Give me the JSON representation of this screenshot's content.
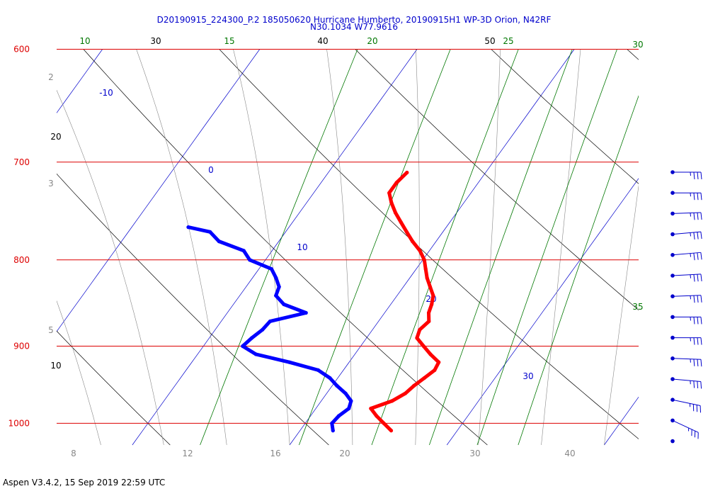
{
  "title_line1": "D20190915_224300_P.2 185050620 Hurricane Humberto, 20190915H1 WP-3D Orion, N42RF",
  "title_line2": "N30.1034 W77.9616",
  "footer": "Aspen V3.4.2, 15 Sep 2019  22:59 UTC",
  "colors": {
    "isobar": "#dd0000",
    "isotherm": "#0000cc",
    "mixing_ratio": "#007700",
    "dry_adiabat": "#000000",
    "moist_adiabat": "#888888",
    "temperature": "#ff0000",
    "dewpoint": "#0000ff",
    "wind_barb": "#0000cc"
  },
  "chart_data": {
    "type": "line",
    "chart_kind": "skew-T log-P sounding",
    "y_scale": "log",
    "ylim": [
      1030,
      600
    ],
    "pressure_levels": [
      "600",
      "700",
      "800",
      "900",
      "1000"
    ],
    "x_tick_labels": [
      "8",
      "12",
      "16",
      "20",
      "30",
      "40"
    ],
    "isotherm_labels": [
      "-10",
      "0",
      "10",
      "20",
      "30"
    ],
    "mixing_ratio_labels": [
      "10",
      "15",
      "20",
      "25",
      "30",
      "35"
    ],
    "dry_adiabat_labels": [
      "30",
      "40",
      "50",
      "20",
      "10"
    ],
    "left_side_labels": [
      "2",
      "3",
      "5"
    ],
    "series": [
      {
        "name": "",
        "kind": "temperature",
        "pressure": [
          1010,
          1000,
          990,
          980,
          970,
          960,
          950,
          940,
          930,
          920,
          910,
          900,
          890,
          880,
          870,
          860,
          850,
          840,
          830,
          820,
          810,
          800,
          790,
          780,
          770,
          760,
          750,
          740,
          730,
          720,
          710
        ],
        "temp_c": [
          25.8,
          25.0,
          24.2,
          23.5,
          24.5,
          25.0,
          25.2,
          25.5,
          25.8,
          25.7,
          24.8,
          24.0,
          23.2,
          23.0,
          23.2,
          22.8,
          22.6,
          22.3,
          21.7,
          21.1,
          20.6,
          20.1,
          19.4,
          18.5,
          17.7,
          16.9,
          16.1,
          15.4,
          14.8,
          14.8,
          15.0
        ]
      },
      {
        "name": "",
        "kind": "dewpoint",
        "pressure": [
          1010,
          1000,
          990,
          980,
          970,
          960,
          950,
          940,
          930,
          920,
          910,
          900,
          890,
          880,
          870,
          860,
          850,
          840,
          830,
          820,
          810,
          800,
          790,
          780,
          770,
          765
        ],
        "temp_c": [
          22.1,
          21.7,
          21.8,
          22.1,
          21.9,
          21.2,
          20.3,
          19.5,
          18.4,
          16.2,
          13.7,
          12.5,
          12.7,
          13.0,
          13.1,
          15.0,
          13.2,
          12.3,
          12.1,
          11.5,
          10.8,
          9.0,
          8.2,
          6.2,
          5.2,
          3.6
        ]
      }
    ],
    "wind_barbs": {
      "pressure": [
        715,
        740,
        765,
        790,
        815,
        840,
        865,
        890,
        915,
        940,
        965,
        990,
        1010,
        1020
      ],
      "speed_kt": [
        15,
        15,
        15,
        15,
        15,
        15,
        15,
        15,
        15,
        15,
        15,
        15,
        15,
        0
      ],
      "direction_deg": [
        270,
        270,
        272,
        275,
        275,
        273,
        272,
        270,
        270,
        268,
        265,
        258,
        245,
        0
      ]
    }
  }
}
